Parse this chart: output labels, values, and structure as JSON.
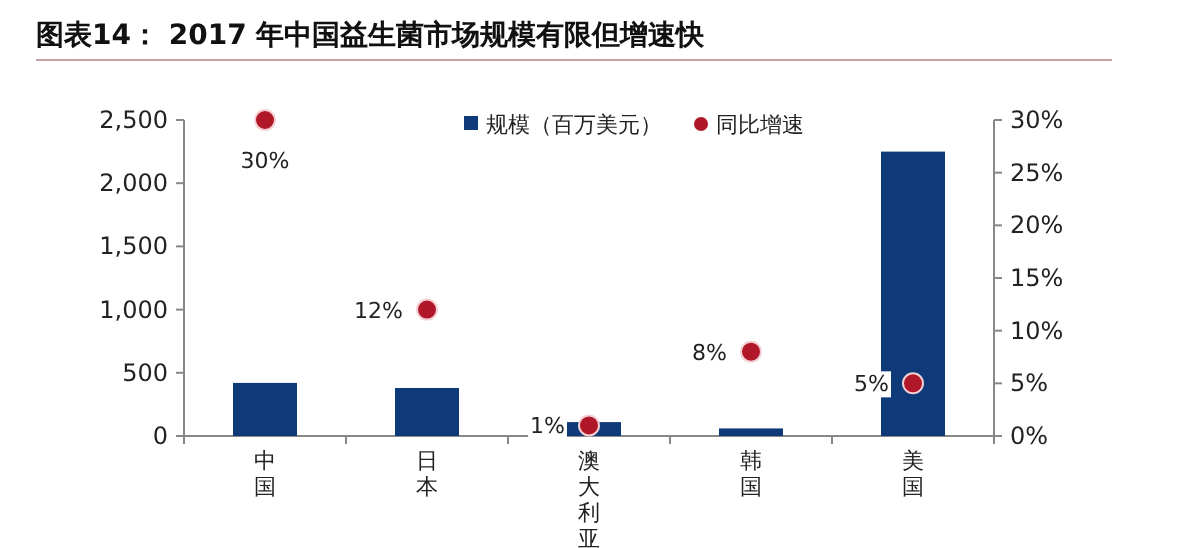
{
  "chart_data": {
    "type": "bar",
    "title": "图表14：  2017 年中国益生菌市场规模有限但增速快",
    "categories": [
      "中国",
      "日本",
      "澳大利亚",
      "韩国",
      "美国"
    ],
    "series": [
      {
        "name": "规模（百万美元）",
        "color": "#0e3a7a",
        "values": [
          420,
          380,
          110,
          60,
          2250
        ]
      },
      {
        "name": "同比增速",
        "type": "scatter",
        "axis": "y2",
        "color": "#b0182a",
        "marker": "circle",
        "values": [
          30,
          12,
          1,
          8,
          5
        ],
        "value_labels": [
          "30%",
          "12%",
          "1%",
          "8%",
          "5%"
        ]
      }
    ],
    "ylim": [
      0,
      2500
    ],
    "yticks": [
      0,
      500,
      {
        "value": 1000,
        "label": "1,000"
      },
      {
        "value": 1500,
        "label": "1,500"
      },
      {
        "value": 2000,
        "label": "2,000"
      },
      {
        "value": 2500,
        "label": "2,500"
      }
    ],
    "y2lim": [
      0,
      30
    ],
    "y2ticks": [
      {
        "value": 0,
        "label": "0%"
      },
      {
        "value": 5,
        "label": "5%"
      },
      {
        "value": 10,
        "label": "10%"
      },
      {
        "value": 15,
        "label": "15%"
      },
      {
        "value": 20,
        "label": "20%"
      },
      {
        "value": 25,
        "label": "25%"
      },
      {
        "value": 30,
        "label": "30%"
      }
    ],
    "legend": "top",
    "grid": false
  }
}
